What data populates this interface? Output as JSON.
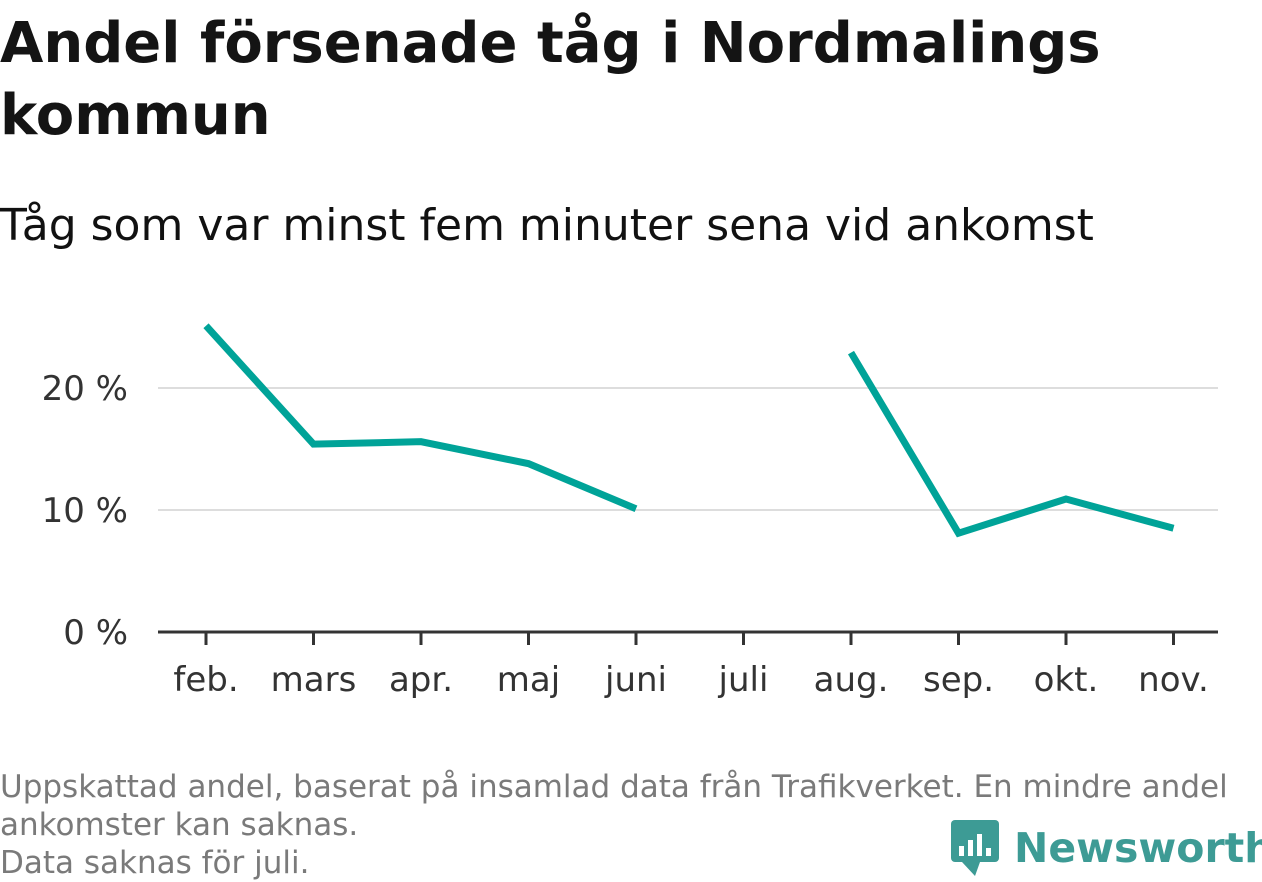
{
  "title": "Andel försenade tåg i Nordmalings kommun",
  "subtitle": "Tåg som var minst fem minuter sena vid ankomst",
  "notes": [
    "Uppskattad andel, baserat på insamlad data från Trafikverket. En mindre andel",
    "ankomster kan saknas.",
    "Data saknas för juli."
  ],
  "brand": {
    "name": "Newsworthy",
    "icon": "newsworthy-logo-icon",
    "color": "#3d9b95"
  },
  "chart_data": {
    "type": "line",
    "title": "Andel försenade tåg i Nordmalings kommun",
    "subtitle": "Tåg som var minst fem minuter sena vid ankomst",
    "xlabel": "",
    "ylabel": "",
    "categories": [
      "feb.",
      "mars",
      "apr.",
      "maj",
      "juni",
      "juli",
      "aug.",
      "sep.",
      "okt.",
      "nov."
    ],
    "series": [
      {
        "values": [
          25.1,
          15.4,
          15.6,
          13.8,
          10.1,
          null,
          22.9,
          8.1,
          10.9,
          8.5
        ],
        "color": "#00a398"
      }
    ],
    "yticks": [
      0,
      10,
      20
    ],
    "ytick_labels": [
      "0 %",
      "10 %",
      "20 %"
    ],
    "ylim": [
      0,
      30
    ],
    "grid": true,
    "legend": "none"
  }
}
